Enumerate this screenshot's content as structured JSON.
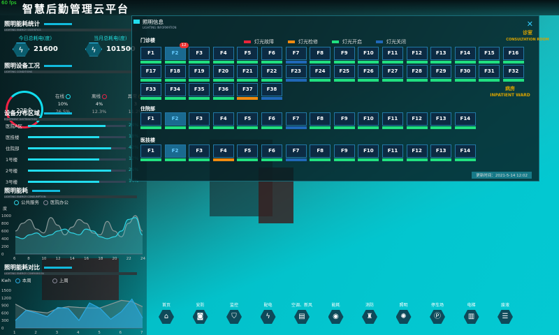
{
  "header": {
    "title": "智慧后勤管理云平台",
    "fps": "60 fps"
  },
  "energy": {
    "title": "照明能耗统计",
    "subtitle": "LIGHTING ENERGY STATISTICS",
    "today_label": "今日总耗电(度)",
    "today_value": "21600",
    "month_label": "当月总耗电(度)",
    "month_value": "101500",
    "icon": "lightning-icon"
  },
  "condition": {
    "title": "照明设备工况",
    "subtitle": "LIGHTING CONDITIONS",
    "total": "228个",
    "items": [
      {
        "label": "在线",
        "count": "10%",
        "pct": "76.5%",
        "color": "#1de0f0"
      },
      {
        "label": "离线",
        "count": "4%",
        "pct": "12.3%",
        "color": "#e8244a"
      },
      {
        "label": "异常",
        "count": "3",
        "pct": "11.2%",
        "color": "#c8a040"
      }
    ]
  },
  "distribution": {
    "title": "设备分布区域",
    "subtitle": "EQUIPMENT DISTRIBUTION",
    "items": [
      {
        "label": "医院A区",
        "percent": 24,
        "text": "24%"
      },
      {
        "label": "医技楼",
        "percent": 18,
        "text": "18%"
      },
      {
        "label": "住院部",
        "percent": 42,
        "text": "42%"
      },
      {
        "label": "1号楼",
        "percent": 12,
        "text": "12%"
      },
      {
        "label": "2号楼",
        "percent": 26,
        "text": "26%"
      },
      {
        "label": "3号楼",
        "percent": 14,
        "text": "14%"
      }
    ],
    "fill_levels": [
      0.79,
      0.73,
      0.85,
      0.73,
      0.85,
      0.73
    ]
  },
  "chart_data": [
    {
      "type": "line",
      "title": "照明能耗",
      "subtitle": "LIGHTING ENERGY CONSUMPTION",
      "ylabel": "度",
      "ylim": [
        0,
        1000
      ],
      "yticks": [
        0,
        200,
        400,
        600,
        800,
        1000
      ],
      "x": [
        6,
        7,
        8,
        9,
        10,
        11,
        12,
        13,
        14,
        15,
        16,
        17,
        18,
        19,
        20,
        21,
        22,
        23,
        24
      ],
      "xticks": [
        6,
        8,
        10,
        12,
        14,
        16,
        18,
        20,
        22,
        24
      ],
      "series": [
        {
          "name": "公共服务",
          "color": "#2fd6e6",
          "values": [
            450,
            400,
            500,
            550,
            450,
            500,
            600,
            650,
            550,
            500,
            650,
            600,
            450,
            400,
            450,
            600,
            900,
            950,
            500
          ]
        },
        {
          "name": "医院办公",
          "color": "#8a9a9a",
          "values": [
            600,
            800,
            900,
            650,
            550,
            950,
            750,
            500,
            700,
            900,
            800,
            550,
            500,
            850,
            600,
            450,
            800,
            1000,
            600
          ]
        }
      ]
    },
    {
      "type": "area",
      "title": "照明能耗对比",
      "subtitle": "LIGHTING ENERGY COMPARISON",
      "ylabel": "Kwh",
      "ylim": [
        0,
        1500
      ],
      "yticks": [
        0,
        300,
        600,
        900,
        1200,
        1500
      ],
      "x": [
        1,
        1.5,
        2,
        2.5,
        3,
        3.5,
        4,
        4.5,
        5,
        5.5,
        6,
        6.5,
        7
      ],
      "xticks": [
        1,
        2,
        3,
        4,
        5,
        6,
        7
      ],
      "series": [
        {
          "name": "本周",
          "color": "#2aa8e0",
          "values": [
            300,
            700,
            600,
            450,
            820,
            780,
            300,
            1000,
            780,
            350,
            650,
            1150,
            400
          ]
        },
        {
          "name": "上周",
          "color": "#8a9a9a",
          "values": [
            950,
            720,
            650,
            600,
            780,
            850,
            820,
            800,
            800,
            950,
            1100,
            1050,
            850
          ]
        }
      ]
    }
  ],
  "modal": {
    "title": "照明信息",
    "subtitle": "LIGHTING INFORMATION",
    "close_icon": "close-icon",
    "legend": [
      {
        "label": "灯光故障",
        "color": "#e8243a"
      },
      {
        "label": "灯光检修",
        "color": "#f08a10"
      },
      {
        "label": "灯光开启",
        "color": "#20e080"
      },
      {
        "label": "灯光关闭",
        "color": "#2068b8"
      }
    ],
    "groups": [
      {
        "name": "门诊楼",
        "floors": [
          "F1",
          "F2",
          "F3",
          "F4",
          "F5",
          "F6",
          "F7",
          "F8",
          "F9",
          "F10",
          "F11",
          "F12",
          "F13",
          "F14",
          "F15",
          "F16",
          "F17",
          "F18",
          "F19",
          "F20",
          "F21",
          "F22",
          "F23",
          "F24",
          "F25",
          "F26",
          "F27",
          "F28",
          "F29",
          "F30",
          "F31",
          "F32",
          "F33",
          "F34",
          "F35",
          "F36",
          "F37",
          "F38"
        ],
        "status": {
          "F7": "off",
          "F23": "off",
          "F37": "repair",
          "F38": "off"
        },
        "selected": "F2",
        "badge": {
          "floor": "F2",
          "count": "12"
        }
      },
      {
        "name": "住院部",
        "floors": [
          "F1",
          "F2",
          "F3",
          "F4",
          "F5",
          "F6",
          "F7",
          "F8",
          "F9",
          "F10",
          "F11",
          "F12",
          "F13",
          "F14"
        ],
        "status": {
          "F7": "off"
        },
        "selected": "F2"
      },
      {
        "name": "医技楼",
        "floors": [
          "F1",
          "F2",
          "F3",
          "F4",
          "F5",
          "F6",
          "F7",
          "F8",
          "F9",
          "F10",
          "F11",
          "F12",
          "F13",
          "F14"
        ],
        "status": {
          "F4": "repair",
          "F7": "off"
        },
        "selected": "F2"
      }
    ],
    "updated": "更新时间：2021-5-14  12:02"
  },
  "scene_labels": {
    "consult": "诊室",
    "consult_en": "CONSULTATION ROOM",
    "ward": "病房",
    "ward_en": "INPATIENT WARD",
    "company": "Comp"
  },
  "nav": [
    {
      "label": "首页",
      "icon": "home-icon",
      "g": "⌂"
    },
    {
      "label": "安防",
      "icon": "camera-icon",
      "g": "◙"
    },
    {
      "label": "监控",
      "icon": "shield-icon",
      "g": "⛉"
    },
    {
      "label": "配电",
      "icon": "lightning-icon",
      "g": "ϟ"
    },
    {
      "label": "空调、新风",
      "icon": "air-conditioner-icon",
      "g": "▤"
    },
    {
      "label": "能耗",
      "icon": "gauge-icon",
      "g": "◉"
    },
    {
      "label": "消防",
      "icon": "hydrant-icon",
      "g": "♜"
    },
    {
      "label": "照明",
      "icon": "bulb-icon",
      "g": "✺"
    },
    {
      "label": "停车场",
      "icon": "parking-icon",
      "g": "Ⓟ"
    },
    {
      "label": "电梯",
      "icon": "elevator-icon",
      "g": "▥"
    },
    {
      "label": "废液",
      "icon": "waste-icon",
      "g": "☰"
    }
  ]
}
